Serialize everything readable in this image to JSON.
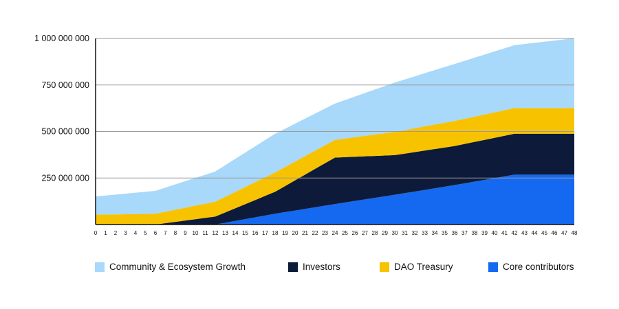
{
  "chart_data": {
    "type": "area",
    "stacked": true,
    "title": "",
    "xlabel": "",
    "ylabel": "",
    "x": [
      0,
      1,
      2,
      3,
      4,
      5,
      6,
      7,
      8,
      9,
      10,
      11,
      12,
      13,
      14,
      15,
      16,
      17,
      18,
      19,
      20,
      21,
      22,
      23,
      24,
      25,
      26,
      27,
      28,
      29,
      30,
      31,
      32,
      33,
      34,
      35,
      36,
      37,
      38,
      39,
      40,
      41,
      42,
      43,
      44,
      45,
      46,
      47,
      48
    ],
    "x_tick_labels": [
      "0",
      "1",
      "2",
      "3",
      "4",
      "5",
      "6",
      "7",
      "8",
      "9",
      "10",
      "11",
      "12",
      "13",
      "14",
      "15",
      "16",
      "17",
      "18",
      "19",
      "20",
      "21",
      "22",
      "23",
      "24",
      "25",
      "26",
      "27",
      "28",
      "29",
      "30",
      "31",
      "32",
      "33",
      "34",
      "35",
      "36",
      "37",
      "38",
      "39",
      "40",
      "41",
      "42",
      "43",
      "44",
      "45",
      "46",
      "47",
      "48"
    ],
    "ylim": [
      0,
      1000000000
    ],
    "y_ticks": [
      250000000,
      500000000,
      750000000,
      1000000000
    ],
    "y_tick_labels": [
      "250 000 000",
      "500 000 000",
      "750 000 000",
      "1 000 000 000"
    ],
    "grid": "horizontal",
    "legend_position": "bottom",
    "series": [
      {
        "name": "Core contributors",
        "color": "#1469f0",
        "points": [
          [
            0,
            0
          ],
          [
            12,
            0
          ],
          [
            18,
            58000000
          ],
          [
            24,
            110000000
          ],
          [
            30,
            160000000
          ],
          [
            36,
            212000000
          ],
          [
            42,
            268000000
          ],
          [
            48,
            268000000
          ]
        ]
      },
      {
        "name": "Investors",
        "color": "#0e1a3a",
        "points": [
          [
            0,
            0
          ],
          [
            6,
            0
          ],
          [
            12,
            43000000
          ],
          [
            18,
            118000000
          ],
          [
            24,
            250000000
          ],
          [
            30,
            213000000
          ],
          [
            36,
            210000000
          ],
          [
            42,
            220000000
          ],
          [
            48,
            220000000
          ]
        ]
      },
      {
        "name": "DAO Treasury",
        "color": "#f7c300",
        "points": [
          [
            0,
            53000000
          ],
          [
            6,
            58000000
          ],
          [
            12,
            80000000
          ],
          [
            18,
            104000000
          ],
          [
            24,
            95000000
          ],
          [
            30,
            125000000
          ],
          [
            36,
            135000000
          ],
          [
            42,
            138000000
          ],
          [
            48,
            138000000
          ]
        ]
      },
      {
        "name": "Community & Ecosystem Growth",
        "color": "#a8d8fa",
        "points": [
          [
            0,
            98000000
          ],
          [
            6,
            123000000
          ],
          [
            12,
            162000000
          ],
          [
            18,
            208000000
          ],
          [
            24,
            195000000
          ],
          [
            30,
            265000000
          ],
          [
            36,
            306000000
          ],
          [
            42,
            338000000
          ],
          [
            48,
            375000000
          ]
        ]
      }
    ]
  },
  "legend": {
    "items": [
      {
        "label": "Community & Ecosystem Growth",
        "color": "#a8d8fa"
      },
      {
        "label": "Investors",
        "color": "#0e1a3a"
      },
      {
        "label": "DAO Treasury",
        "color": "#f7c300"
      },
      {
        "label": "Core contributors",
        "color": "#1469f0"
      }
    ]
  }
}
